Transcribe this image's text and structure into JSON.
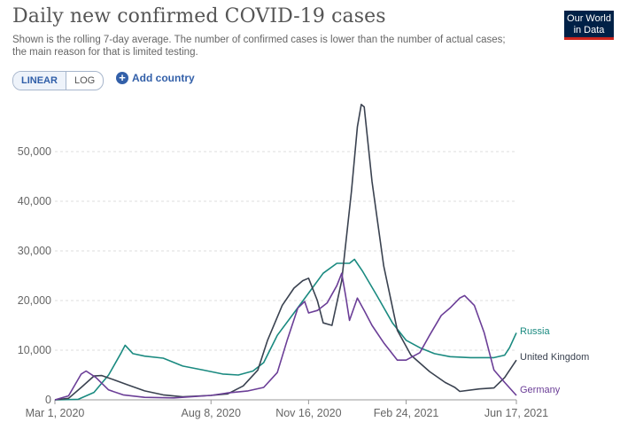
{
  "header": {
    "title": "Daily new confirmed COVID-19 cases",
    "subtitle_line1": "Shown is the rolling 7-day average. The number of confirmed cases is lower than the number of actual cases;",
    "subtitle_line2": "the main reason for that is limited testing.",
    "logo_line1": "Our World",
    "logo_line2": "in Data"
  },
  "controls": {
    "linear_label": "LINEAR",
    "log_label": "LOG",
    "add_country_label": "Add country",
    "add_icon": "plus-circle-icon"
  },
  "chart_data": {
    "type": "line",
    "x_type": "date",
    "x_ticks": [
      "Mar 1, 2020",
      "Aug 8, 2020",
      "Nov 16, 2020",
      "Feb 24, 2021",
      "Jun 17, 2021"
    ],
    "y_ticks": [
      0,
      10000,
      20000,
      30000,
      40000,
      50000
    ],
    "y_tick_labels": [
      "0",
      "10,000",
      "20,000",
      "30,000",
      "40,000",
      "50,000"
    ],
    "ylim": [
      0,
      60000
    ],
    "grid": "horizontal dashed",
    "legend": "labels at line ends",
    "series": [
      {
        "name": "Russia",
        "color": "#1a8a80",
        "points": [
          [
            "2020-03-01",
            0
          ],
          [
            "2020-03-25",
            100
          ],
          [
            "2020-04-10",
            1500
          ],
          [
            "2020-04-25",
            5000
          ],
          [
            "2020-05-08",
            9500
          ],
          [
            "2020-05-12",
            11000
          ],
          [
            "2020-05-20",
            9300
          ],
          [
            "2020-06-01",
            8800
          ],
          [
            "2020-06-20",
            8400
          ],
          [
            "2020-07-10",
            6800
          ],
          [
            "2020-07-31",
            6000
          ],
          [
            "2020-08-20",
            5200
          ],
          [
            "2020-09-05",
            5000
          ],
          [
            "2020-09-20",
            5800
          ],
          [
            "2020-10-01",
            7500
          ],
          [
            "2020-10-15",
            13000
          ],
          [
            "2020-11-01",
            17500
          ],
          [
            "2020-11-16",
            21500
          ],
          [
            "2020-12-01",
            25500
          ],
          [
            "2020-12-15",
            27500
          ],
          [
            "2020-12-28",
            27500
          ],
          [
            "2021-01-02",
            28300
          ],
          [
            "2021-01-10",
            26000
          ],
          [
            "2021-01-25",
            21000
          ],
          [
            "2021-02-10",
            15500
          ],
          [
            "2021-02-24",
            12000
          ],
          [
            "2021-03-10",
            10500
          ],
          [
            "2021-03-25",
            9300
          ],
          [
            "2021-04-10",
            8700
          ],
          [
            "2021-05-01",
            8500
          ],
          [
            "2021-05-25",
            8500
          ],
          [
            "2021-06-05",
            9000
          ],
          [
            "2021-06-10",
            10500
          ],
          [
            "2021-06-17",
            13500
          ]
        ]
      },
      {
        "name": "United Kingdom",
        "color": "#3a4250",
        "points": [
          [
            "2020-03-01",
            0
          ],
          [
            "2020-03-15",
            300
          ],
          [
            "2020-03-28",
            2500
          ],
          [
            "2020-04-10",
            4800
          ],
          [
            "2020-04-18",
            4900
          ],
          [
            "2020-05-01",
            4000
          ],
          [
            "2020-05-15",
            3000
          ],
          [
            "2020-06-01",
            1800
          ],
          [
            "2020-06-20",
            1000
          ],
          [
            "2020-07-10",
            600
          ],
          [
            "2020-08-08",
            900
          ],
          [
            "2020-08-25",
            1200
          ],
          [
            "2020-09-10",
            2800
          ],
          [
            "2020-09-25",
            6000
          ],
          [
            "2020-10-05",
            12000
          ],
          [
            "2020-10-20",
            19000
          ],
          [
            "2020-11-01",
            22500
          ],
          [
            "2020-11-10",
            24000
          ],
          [
            "2020-11-16",
            24500
          ],
          [
            "2020-11-25",
            20000
          ],
          [
            "2020-12-01",
            15500
          ],
          [
            "2020-12-10",
            15000
          ],
          [
            "2020-12-20",
            24000
          ],
          [
            "2020-12-30",
            42000
          ],
          [
            "2021-01-05",
            55000
          ],
          [
            "2021-01-09",
            59500
          ],
          [
            "2021-01-12",
            59000
          ],
          [
            "2021-01-20",
            44000
          ],
          [
            "2021-02-01",
            27000
          ],
          [
            "2021-02-15",
            14000
          ],
          [
            "2021-03-01",
            9000
          ],
          [
            "2021-03-20",
            5700
          ],
          [
            "2021-04-05",
            3500
          ],
          [
            "2021-04-15",
            2500
          ],
          [
            "2021-04-20",
            1700
          ],
          [
            "2021-05-10",
            2200
          ],
          [
            "2021-05-25",
            2400
          ],
          [
            "2021-06-05",
            4500
          ],
          [
            "2021-06-17",
            8000
          ]
        ]
      },
      {
        "name": "Germany",
        "color": "#6b3e97",
        "points": [
          [
            "2020-03-01",
            0
          ],
          [
            "2020-03-15",
            800
          ],
          [
            "2020-03-28",
            5200
          ],
          [
            "2020-04-02",
            5800
          ],
          [
            "2020-04-12",
            4500
          ],
          [
            "2020-04-25",
            2000
          ],
          [
            "2020-05-10",
            1000
          ],
          [
            "2020-06-01",
            500
          ],
          [
            "2020-07-01",
            400
          ],
          [
            "2020-08-08",
            900
          ],
          [
            "2020-08-25",
            1400
          ],
          [
            "2020-09-15",
            1800
          ],
          [
            "2020-10-01",
            2500
          ],
          [
            "2020-10-15",
            5500
          ],
          [
            "2020-10-25",
            12000
          ],
          [
            "2020-11-05",
            18500
          ],
          [
            "2020-11-12",
            19800
          ],
          [
            "2020-11-16",
            17500
          ],
          [
            "2020-11-25",
            18000
          ],
          [
            "2020-12-05",
            19500
          ],
          [
            "2020-12-15",
            23000
          ],
          [
            "2020-12-20",
            25500
          ],
          [
            "2020-12-24",
            21000
          ],
          [
            "2020-12-28",
            16000
          ],
          [
            "2021-01-05",
            20500
          ],
          [
            "2021-01-12",
            18000
          ],
          [
            "2021-01-20",
            15000
          ],
          [
            "2021-02-01",
            11500
          ],
          [
            "2021-02-15",
            8000
          ],
          [
            "2021-02-24",
            8000
          ],
          [
            "2021-03-10",
            9500
          ],
          [
            "2021-03-20",
            13000
          ],
          [
            "2021-04-01",
            17000
          ],
          [
            "2021-04-10",
            18500
          ],
          [
            "2021-04-20",
            20500
          ],
          [
            "2021-04-25",
            21000
          ],
          [
            "2021-05-05",
            19000
          ],
          [
            "2021-05-15",
            13500
          ],
          [
            "2021-05-25",
            6000
          ],
          [
            "2021-06-05",
            3500
          ],
          [
            "2021-06-17",
            900
          ]
        ]
      }
    ]
  }
}
